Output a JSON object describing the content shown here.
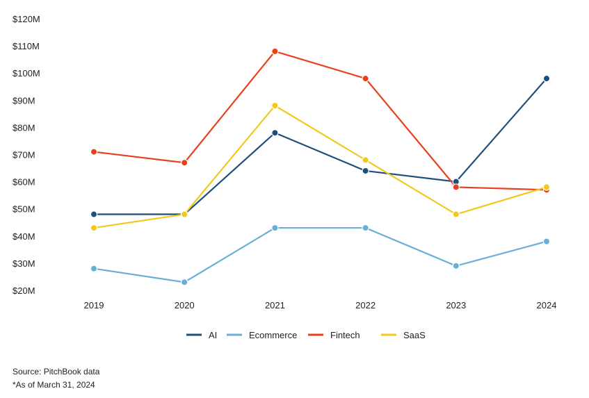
{
  "chart_data": {
    "type": "line",
    "title": "",
    "xlabel": "",
    "ylabel": "",
    "categories": [
      "2019",
      "2020",
      "2021",
      "2022",
      "2023",
      "2024"
    ],
    "ylim": [
      20,
      120
    ],
    "yticks": [
      20,
      30,
      40,
      50,
      60,
      70,
      80,
      90,
      100,
      110,
      120
    ],
    "ytick_labels": [
      "$20M",
      "$30M",
      "$40M",
      "$50M",
      "$60M",
      "$70M",
      "$80M",
      "$90M",
      "$100M",
      "$110M",
      "$120M"
    ],
    "grid": false,
    "legend_position": "bottom",
    "series": [
      {
        "name": "AI",
        "color": "#1f4e79",
        "values": [
          48,
          48,
          78,
          64,
          60,
          98
        ]
      },
      {
        "name": "Ecommerce",
        "color": "#6aaed6",
        "values": [
          28,
          23,
          43,
          43,
          29,
          38
        ]
      },
      {
        "name": "Fintech",
        "color": "#e8401c",
        "values": [
          71,
          67,
          108,
          98,
          58,
          57
        ]
      },
      {
        "name": "SaaS",
        "color": "#f2c81e",
        "values": [
          43,
          48,
          88,
          68,
          48,
          58
        ]
      }
    ]
  },
  "footnotes": {
    "source": "Source: PitchBook data",
    "as_of": "*As of March 31, 2024"
  }
}
